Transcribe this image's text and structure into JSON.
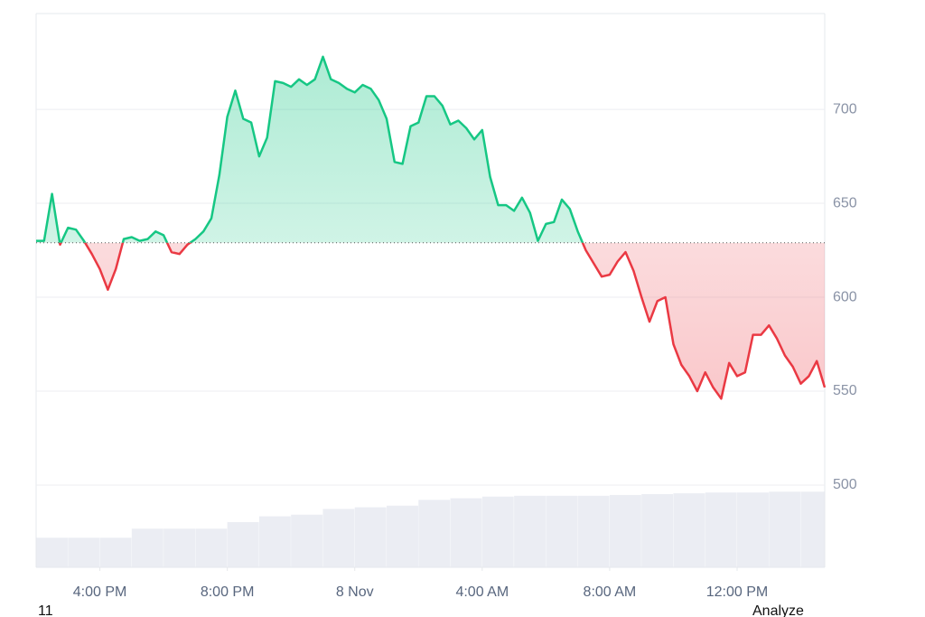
{
  "chart_data": {
    "type": "line",
    "x": [
      14,
      14.25,
      14.5,
      14.75,
      15,
      15.25,
      15.5,
      15.75,
      16,
      16.25,
      16.5,
      16.75,
      17,
      17.25,
      17.5,
      17.75,
      18,
      18.25,
      18.5,
      18.75,
      19,
      19.25,
      19.5,
      19.75,
      20,
      20.25,
      20.5,
      20.75,
      21,
      21.25,
      21.5,
      21.75,
      22,
      22.25,
      22.5,
      22.75,
      23,
      23.25,
      23.5,
      23.75,
      24,
      24.25,
      24.5,
      24.75,
      25,
      25.25,
      25.5,
      25.75,
      26,
      26.25,
      26.5,
      26.75,
      27,
      27.25,
      27.5,
      27.75,
      28,
      28.25,
      28.5,
      28.75,
      29,
      29.25,
      29.5,
      29.75,
      30,
      30.25,
      30.5,
      30.75,
      31,
      31.25,
      31.5,
      31.75,
      32,
      32.25,
      32.5,
      32.75,
      33,
      33.25,
      33.5,
      33.75,
      34,
      34.25,
      34.5,
      34.75,
      35,
      35.25,
      35.5,
      35.75,
      36,
      36.25,
      36.5,
      36.75,
      37,
      37.25,
      37.5,
      37.75,
      38,
      38.25,
      38.5,
      38.75
    ],
    "series": [
      {
        "colors": {
          "up": "#16c784",
          "down": "#ea3943"
        },
        "values": [
          630,
          630,
          655,
          628,
          637,
          636,
          630,
          623,
          615,
          604,
          615,
          631,
          632,
          630,
          631,
          635,
          633,
          624,
          623,
          628,
          631,
          635,
          642,
          665,
          696,
          710,
          695,
          693,
          675,
          685,
          715,
          714,
          712,
          716,
          713,
          716,
          728,
          716,
          714,
          711,
          709,
          713,
          711,
          705,
          695,
          672,
          671,
          691,
          693,
          707,
          707,
          702,
          692,
          694,
          690,
          684,
          689,
          664,
          649,
          649,
          646,
          653,
          645,
          630,
          639,
          640,
          652,
          647,
          635,
          625,
          618,
          611,
          612,
          619,
          624,
          614,
          600,
          587,
          598,
          600,
          575,
          564,
          558,
          550,
          560,
          552,
          546,
          565,
          558,
          560,
          580,
          580,
          585,
          578,
          569,
          563,
          554,
          558,
          566,
          552
        ]
      }
    ],
    "baseline": 629,
    "volume": {
      "color": "#e3e6ee",
      "x": [
        14,
        15,
        16,
        17,
        18,
        19,
        20,
        21,
        22,
        23,
        24,
        25,
        26,
        27,
        28,
        29,
        30,
        31,
        32,
        33,
        34,
        35,
        36,
        37,
        38
      ],
      "values": [
        36,
        36,
        36,
        47,
        47,
        47,
        55,
        62,
        64,
        71,
        73,
        75,
        82,
        84,
        86,
        87,
        87,
        87,
        88,
        89,
        90,
        91,
        91,
        92,
        92
      ],
      "ylim": [
        0,
        100
      ]
    },
    "xlim": [
      14,
      38.75
    ],
    "xticks": [
      {
        "value": 16,
        "label": "4:00 PM"
      },
      {
        "value": 20,
        "label": "8:00 PM"
      },
      {
        "value": 24,
        "label": "8 Nov"
      },
      {
        "value": 28,
        "label": "4:00 AM"
      },
      {
        "value": 32,
        "label": "8:00 AM"
      },
      {
        "value": 36,
        "label": "12:00 PM"
      }
    ],
    "ylim": [
      500,
      751
    ],
    "yticks": [
      500,
      550,
      600,
      650,
      700
    ],
    "grid": true
  },
  "footer": {
    "left": "11",
    "right": "Analyze"
  }
}
